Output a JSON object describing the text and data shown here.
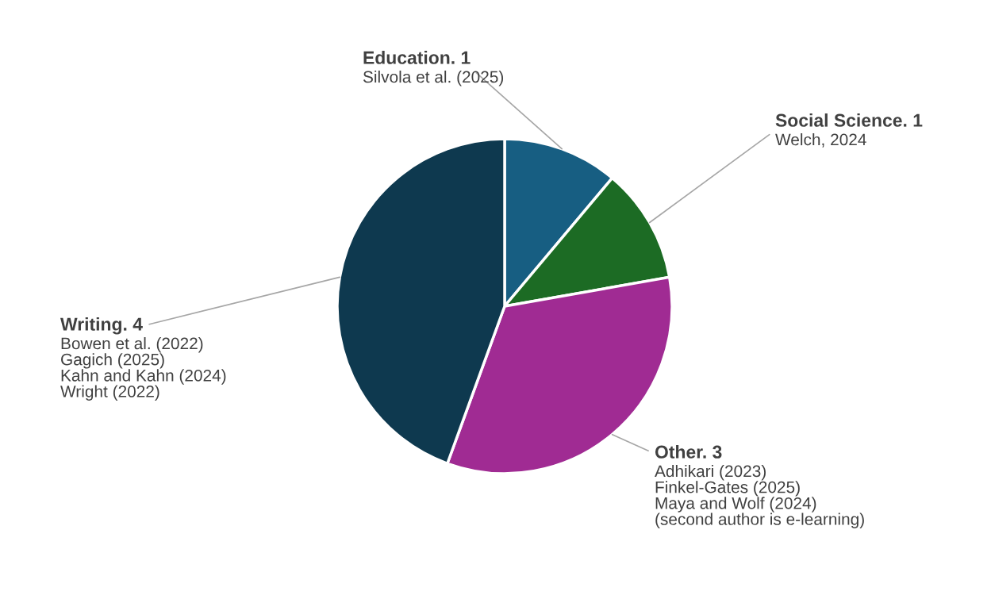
{
  "chart_data": {
    "type": "pie",
    "categories": [
      "Education. 1",
      "Social Science. 1",
      "Other. 3",
      "Writing. 4"
    ],
    "values": [
      1,
      1,
      3,
      4
    ],
    "colors": [
      "#175e82",
      "#1c6b24",
      "#a02b93",
      "#0e394f"
    ],
    "annotations": [
      "Silvola et al. (2025)",
      "Welch, 2024",
      "Adhikari (2023)\nFinkel-Gates (2025)\nMaya and Wolf (2024)\n(second author is e-learning)",
      "Bowen et al. (2022)\nGagich (2025)\nKahn and Kahn (2024)\nWright (2022)"
    ]
  }
}
